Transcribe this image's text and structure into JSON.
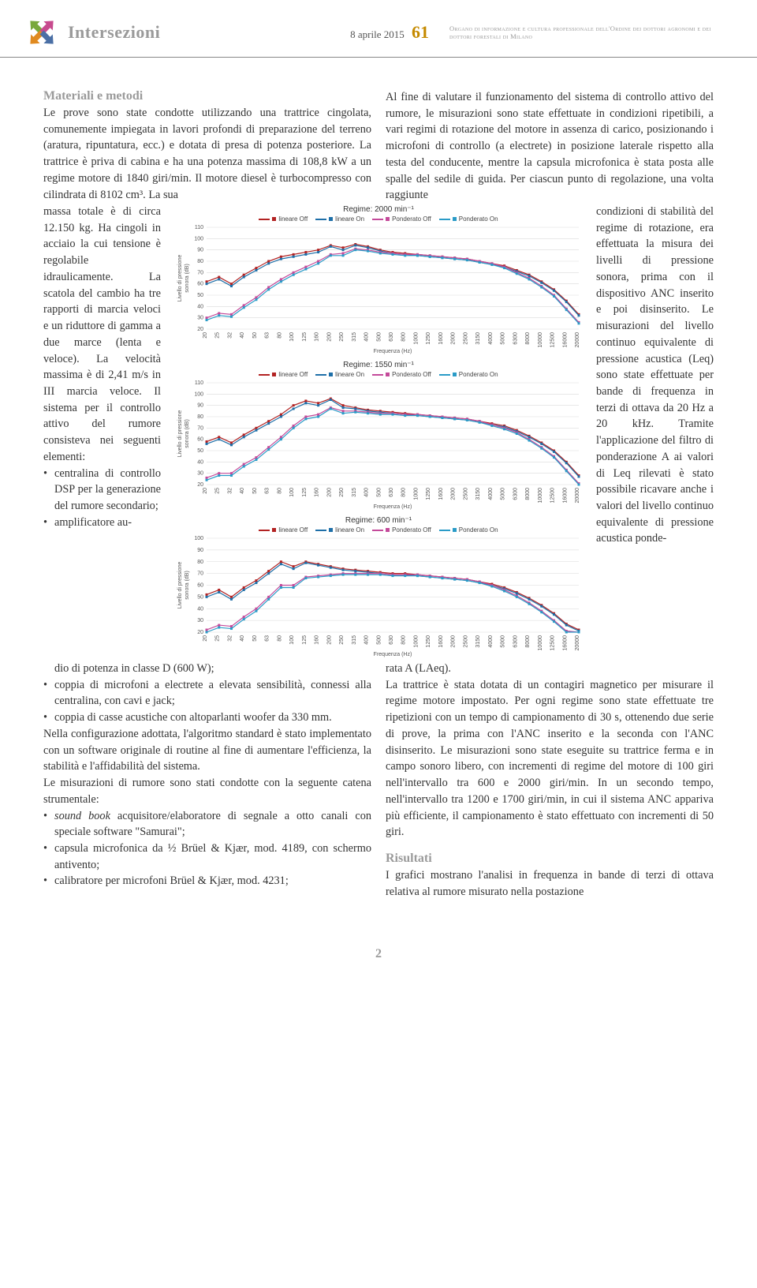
{
  "header": {
    "masthead": "Intersezioni",
    "date": "8 aprile 2015",
    "page_number": "61",
    "subtitle": "Organo di informazione e cultura professionale dell'Ordine dei dottori agronomi e dei dottori forestali di Milano"
  },
  "logo": {
    "colors": [
      "#79a83b",
      "#c74a8e",
      "#e08a1f",
      "#4a6fa5"
    ]
  },
  "section_heading_1": "Materiali e metodi",
  "para_intro_top_left": "Le prove sono state condotte utilizzando una trattrice cingolata, comunemente impiegata in lavori profondi di preparazione del terreno (aratura, ripuntatura, ecc.) e dotata di presa di potenza posteriore. La trattrice è priva di cabina e ha una potenza massima di 108,8 kW a un regime motore di 1840 giri/min. Il motore diesel è turbocompresso con cilindrata di 8102 cm³. La sua",
  "para_intro_top_right": "Al fine di valutare il funzionamento del sistema di controllo attivo del rumore, le misurazioni sono state effettuate in condizioni ripetibili, a vari regimi di rotazione del motore in assenza di carico, posizionando i microfoni di controllo (a electrete) in posizione laterale rispetto alla testa del conducente, mentre la capsula microfonica è stata posta alle spalle del sedile di guida. Per ciascun punto di regolazione, una volta raggiunte",
  "side_left": "massa totale è di circa 12.150 kg. Ha cingoli in acciaio la cui tensione è regolabile idraulicamente. La scatola del cambio ha tre rapporti di marcia veloci e un riduttore di gamma a due marce (lenta e veloce). La velocità massima è di 2,41 m/s in III marcia veloce.\nIl sistema per il controllo attivo del rumore consisteva nei seguenti elementi:",
  "side_left_bullets": [
    "centralina di controllo DSP per la generazione del rumore secondario;",
    "amplificatore au-"
  ],
  "side_right": "condizioni di stabilità del regime di rotazione, era effettuata la misura dei livelli di pressione sonora, prima con il dispositivo ANC inserito e poi disinserito. Le misurazioni del livello continuo equivalente di pressione acustica (Leq) sono state effettuate per bande di frequenza in terzi di ottava da 20 Hz a 20 kHz. Tramite l'applicazione del filtro di ponderazione A ai valori di Leq rilevati è stato possibile ricavare anche i valori del livello continuo equivalente di pressione acustica ponde-",
  "lower_left_lead": "dio di potenza in classe D (600 W);",
  "lower_left_bullets": [
    "coppia di microfoni a electrete a elevata sensibilità, connessi alla centralina, con cavi e jack;",
    "coppia di casse acustiche con altoparlanti woofer da 330 mm."
  ],
  "lower_left_para1": "Nella configurazione adottata, l'algoritmo standard è stato implementato con un software originale di routine al fine di aumentare l'efficienza, la stabilità e l'affidabilità del sistema.",
  "lower_left_para2": "Le misurazioni di rumore sono stati condotte con la seguente catena strumentale:",
  "lower_left_bullets2": [
    "<i>sound book</i> acquisitore/elaboratore di segnale a otto canali con speciale software \"Samurai\";",
    "capsula microfonica da ½ Brüel & Kjær, mod. 4189, con schermo antivento;",
    "calibratore per microfoni Brüel & Kjær, mod. 4231;"
  ],
  "lower_right_lead": "rata A (LAeq).",
  "lower_right_para": "La trattrice è stata dotata di un contagiri magnetico per misurare il regime motore impostato. Per ogni regime sono state effettuate tre ripetizioni con un tempo di campionamento di 30 s, ottenendo due serie di prove, la prima con l'ANC inserito e la seconda con l'ANC disinserito. Le misurazioni sono state eseguite su trattrice ferma e in campo sonoro libero, con incrementi di regime del motore di 100 giri nell'intervallo tra 600 e 2000 giri/min. In un secondo tempo, nell'intervallo tra 1200 e 1700 giri/min, in cui il sistema ANC appariva più efficiente, il campionamento è stato effettuato con incrementi di 50 giri.",
  "section_heading_2": "Risultati",
  "risultati_para": "I grafici mostrano l'analisi in frequenza in bande di terzi di ottava relativa al rumore misurato nella postazione",
  "page_footer": "2",
  "charts": {
    "common": {
      "xticks": [
        "20",
        "25",
        "32",
        "40",
        "50",
        "63",
        "80",
        "100",
        "125",
        "160",
        "200",
        "250",
        "315",
        "400",
        "500",
        "630",
        "800",
        "1000",
        "1250",
        "1600",
        "2000",
        "2500",
        "3150",
        "4000",
        "5000",
        "6300",
        "8000",
        "10000",
        "12500",
        "16000",
        "20000"
      ],
      "xlabel": "Frequenza (Hz)",
      "ylabel": "Livello di pressione\nsonora (dB)",
      "legend_labels": [
        "lineare Off",
        "lineare On",
        "Ponderato Off",
        "Ponderato On"
      ],
      "series_colors": {
        "lineare_off": "#b22222",
        "lineare_on": "#1e6fa8",
        "ponderato_off": "#c44a9a",
        "ponderato_on": "#2a9bc7"
      },
      "grid_color": "#d9d9d9",
      "background_color": "#ffffff",
      "line_width": 1.2,
      "marker_size": 3,
      "label_fontsize": 8,
      "tick_fontsize": 7
    },
    "panels": [
      {
        "title": "Regime: 2000 min⁻¹",
        "yticks": [
          20,
          30,
          40,
          50,
          60,
          70,
          80,
          90,
          100,
          110
        ],
        "ylim": [
          20,
          110
        ],
        "series": {
          "lineare_off": [
            62,
            66,
            60,
            68,
            74,
            80,
            84,
            86,
            88,
            90,
            94,
            92,
            95,
            93,
            90,
            88,
            87,
            86,
            85,
            84,
            83,
            82,
            80,
            78,
            76,
            72,
            68,
            62,
            55,
            45,
            33
          ],
          "lineare_on": [
            60,
            64,
            58,
            66,
            72,
            78,
            82,
            84,
            86,
            88,
            93,
            90,
            94,
            92,
            89,
            87,
            86,
            85,
            84,
            83,
            82,
            81,
            79,
            77,
            75,
            71,
            67,
            61,
            54,
            44,
            32
          ],
          "ponderato_off": [
            30,
            34,
            33,
            41,
            48,
            57,
            64,
            70,
            75,
            80,
            86,
            87,
            91,
            90,
            88,
            87,
            86,
            86,
            85,
            84,
            83,
            82,
            80,
            78,
            75,
            70,
            65,
            58,
            50,
            38,
            26
          ],
          "ponderato_on": [
            28,
            32,
            31,
            39,
            46,
            55,
            62,
            68,
            73,
            78,
            85,
            85,
            90,
            89,
            87,
            86,
            85,
            85,
            84,
            83,
            82,
            81,
            79,
            77,
            74,
            69,
            64,
            57,
            49,
            37,
            25
          ]
        }
      },
      {
        "title": "Regime: 1550 min⁻¹",
        "yticks": [
          20,
          30,
          40,
          50,
          60,
          70,
          80,
          90,
          100,
          110
        ],
        "ylim": [
          20,
          110
        ],
        "series": {
          "lineare_off": [
            58,
            62,
            57,
            64,
            70,
            76,
            82,
            90,
            94,
            92,
            96,
            90,
            88,
            86,
            85,
            84,
            83,
            82,
            81,
            80,
            79,
            78,
            76,
            74,
            72,
            68,
            63,
            57,
            50,
            40,
            28
          ],
          "lineare_on": [
            56,
            60,
            55,
            62,
            68,
            74,
            80,
            87,
            92,
            90,
            95,
            88,
            87,
            85,
            84,
            83,
            82,
            81,
            80,
            79,
            78,
            77,
            75,
            73,
            71,
            67,
            62,
            56,
            49,
            39,
            27
          ],
          "ponderato_off": [
            26,
            30,
            30,
            38,
            44,
            53,
            62,
            72,
            80,
            82,
            88,
            85,
            85,
            84,
            83,
            83,
            82,
            82,
            81,
            80,
            79,
            78,
            76,
            73,
            70,
            66,
            60,
            53,
            45,
            33,
            21
          ],
          "ponderato_on": [
            24,
            28,
            28,
            36,
            42,
            51,
            60,
            70,
            78,
            80,
            87,
            83,
            84,
            83,
            82,
            82,
            81,
            81,
            80,
            79,
            78,
            77,
            75,
            72,
            69,
            65,
            59,
            52,
            44,
            32,
            20
          ]
        }
      },
      {
        "title": "Regime: 600 min⁻¹",
        "yticks": [
          20,
          30,
          40,
          50,
          60,
          70,
          80,
          90,
          100
        ],
        "ylim": [
          20,
          100
        ],
        "series": {
          "lineare_off": [
            52,
            56,
            50,
            58,
            64,
            72,
            80,
            76,
            80,
            78,
            76,
            74,
            73,
            72,
            71,
            70,
            70,
            69,
            68,
            67,
            66,
            65,
            63,
            61,
            58,
            54,
            49,
            43,
            36,
            27,
            22
          ],
          "lineare_on": [
            50,
            54,
            48,
            56,
            62,
            70,
            78,
            74,
            79,
            77,
            75,
            73,
            72,
            71,
            70,
            69,
            69,
            68,
            67,
            66,
            65,
            64,
            62,
            60,
            57,
            53,
            48,
            42,
            35,
            26,
            21
          ],
          "ponderato_off": [
            22,
            26,
            25,
            33,
            40,
            50,
            60,
            60,
            67,
            68,
            69,
            70,
            70,
            70,
            70,
            69,
            69,
            69,
            68,
            67,
            66,
            65,
            63,
            60,
            56,
            51,
            45,
            38,
            30,
            21,
            20
          ],
          "ponderato_on": [
            20,
            24,
            23,
            31,
            38,
            48,
            58,
            58,
            66,
            67,
            68,
            69,
            69,
            69,
            69,
            68,
            68,
            68,
            67,
            66,
            65,
            64,
            62,
            59,
            55,
            50,
            44,
            37,
            29,
            20,
            20
          ]
        }
      }
    ]
  }
}
